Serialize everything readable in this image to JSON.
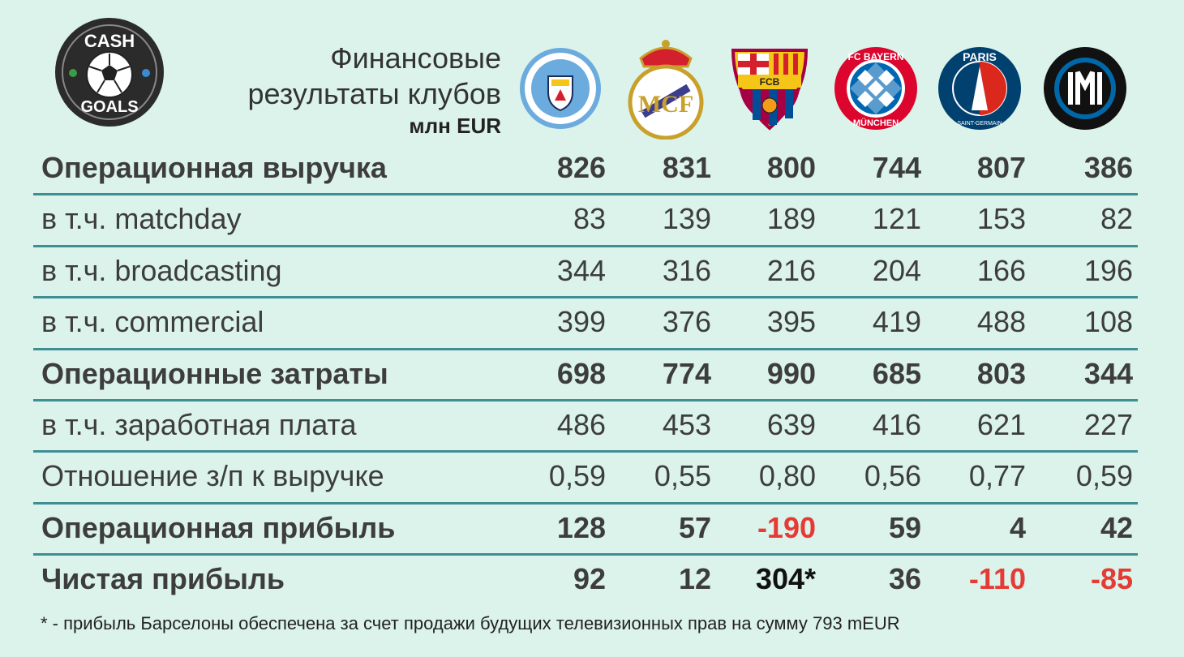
{
  "brand": {
    "logo_top": "CASH",
    "logo_bottom": "GOALS"
  },
  "header": {
    "title_line1": "Финансовые",
    "title_line2": "результаты клубов",
    "unit": "млн EUR"
  },
  "clubs": [
    {
      "crest": "manchester-city-crest",
      "text": "MANCHESTER CITY"
    },
    {
      "crest": "real-madrid-crest",
      "text": "MCF"
    },
    {
      "crest": "barcelona-crest",
      "text": "FCB"
    },
    {
      "crest": "bayern-munich-crest",
      "text": "FC BAYERN MÜNCHEN"
    },
    {
      "crest": "psg-crest",
      "text": "PARIS SAINT-GERMAIN"
    },
    {
      "crest": "inter-crest",
      "text": "IM"
    }
  ],
  "rows": [
    {
      "label": "Операционная выручка",
      "values": [
        "826",
        "831",
        "800",
        "744",
        "807",
        "386"
      ]
    },
    {
      "label": "в т.ч. matchday",
      "values": [
        "83",
        "139",
        "189",
        "121",
        "153",
        "82"
      ]
    },
    {
      "label": "в т.ч. broadcasting",
      "values": [
        "344",
        "316",
        "216",
        "204",
        "166",
        "196"
      ]
    },
    {
      "label": "в т.ч. commercial",
      "values": [
        "399",
        "376",
        "395",
        "419",
        "488",
        "108"
      ]
    },
    {
      "label": "Операционные затраты",
      "values": [
        "698",
        "774",
        "990",
        "685",
        "803",
        "344"
      ]
    },
    {
      "label": "в т.ч. заработная плата",
      "values": [
        "486",
        "453",
        "639",
        "416",
        "621",
        "227"
      ]
    },
    {
      "label": "Отношение з/п к выручке",
      "values": [
        "0,59",
        "0,55",
        "0,80",
        "0,56",
        "0,77",
        "0,59"
      ]
    },
    {
      "label": "Операционная прибыль",
      "values": [
        "128",
        "57",
        "-190",
        "59",
        "4",
        "42"
      ]
    },
    {
      "label": "Чистая прибыль",
      "values": [
        "92",
        "12",
        "304*",
        "36",
        "-110",
        "-85"
      ]
    }
  ],
  "colors": {
    "negative": "#e53b34",
    "rule": "#3f8e94",
    "background": "#dbf3ea"
  },
  "footnote": "* - прибыль Барселоны обеспечена за счет продажи будущих телевизионных прав на сумму 793 mEUR"
}
